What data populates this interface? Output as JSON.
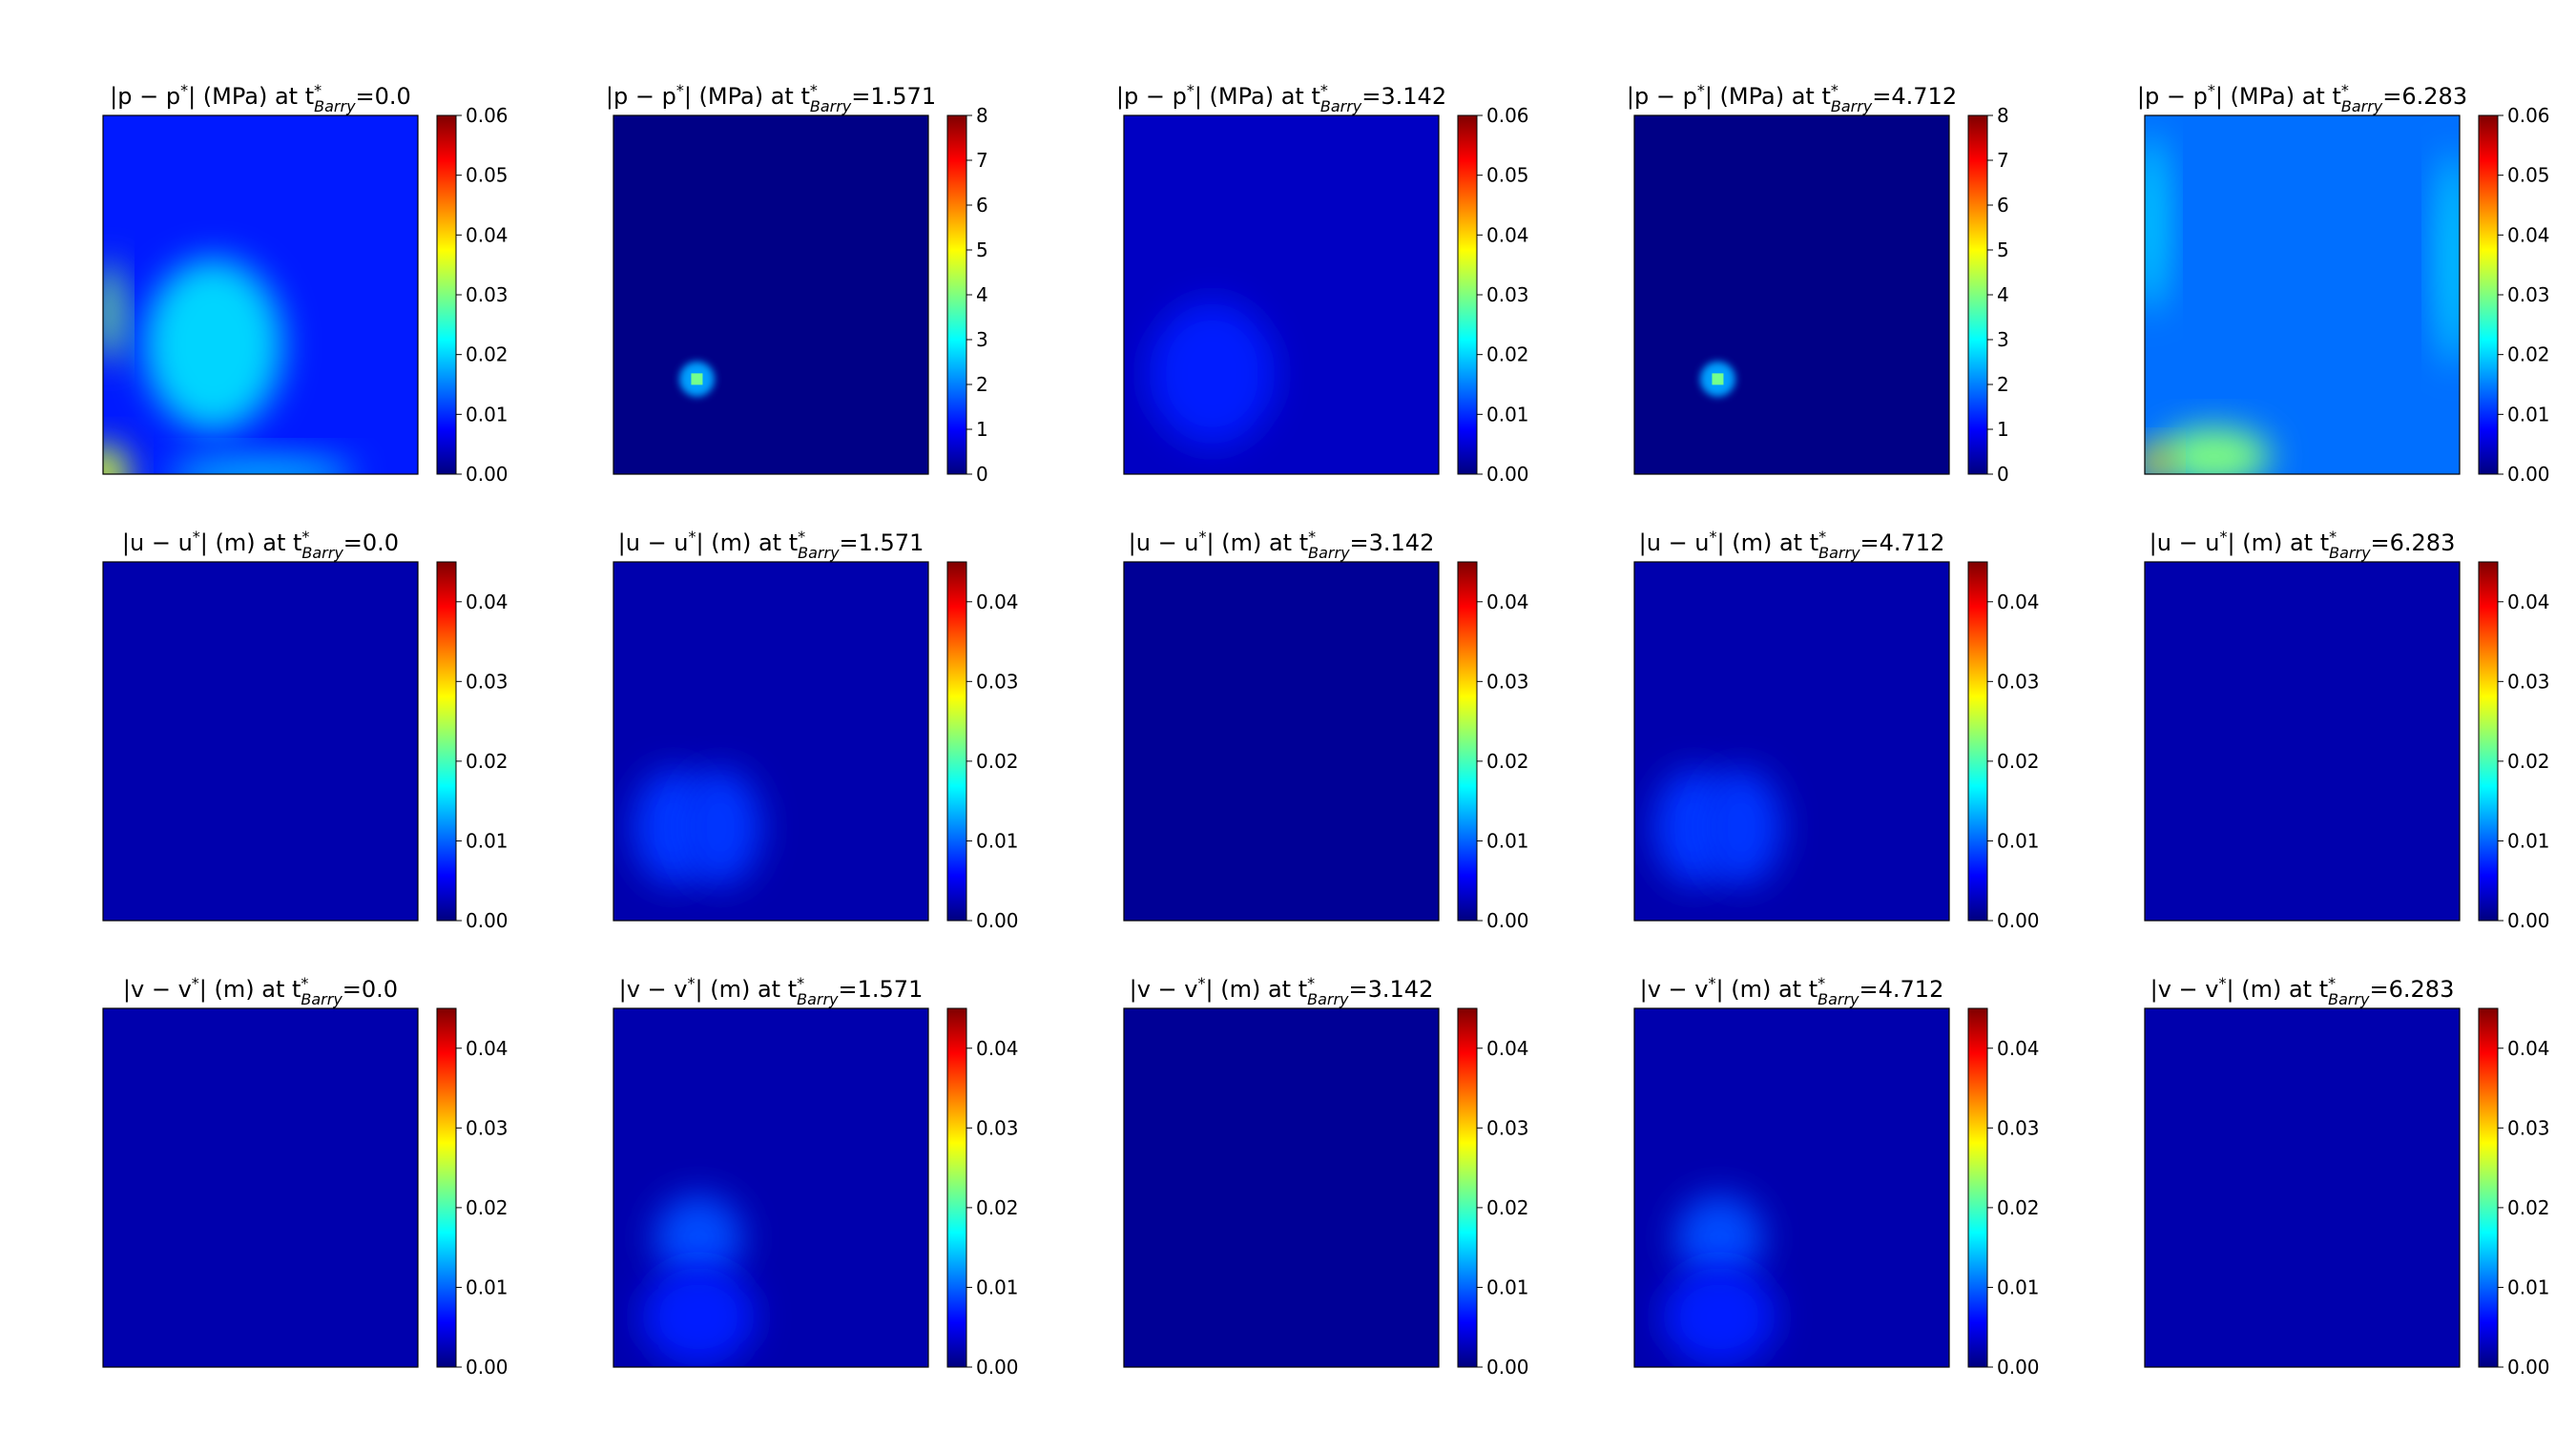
{
  "colorbar_colors": [
    "#00007f",
    "#0000ff",
    "#007fff",
    "#00ffff",
    "#7fff7f",
    "#ffff00",
    "#ff7f00",
    "#ff0000",
    "#7f0000"
  ],
  "chart_data": [
    {
      "type": "heatmap",
      "row": 0,
      "col": 0,
      "field": "p",
      "units": "MPa",
      "time": "0.0",
      "title": {
        "lhs": "|p − p",
        "rhs": "| (MPa) at t",
        "sub": "Barry",
        "value": "=0.0"
      },
      "colorbar": {
        "range": [
          0,
          0.06
        ],
        "ticks": [
          "0.00",
          "0.01",
          "0.02",
          "0.03",
          "0.04",
          "0.05",
          "0.06"
        ]
      },
      "background_level": 0.009,
      "features": [
        {
          "shape": "blob",
          "cx": 0.35,
          "cy": 0.64,
          "rx": 0.22,
          "ry": 0.24,
          "level": 0.02
        },
        {
          "shape": "blob",
          "cx": 0.02,
          "cy": 0.55,
          "rx": 0.04,
          "ry": 0.14,
          "level": 0.03
        },
        {
          "shape": "blob",
          "cx": 0.0,
          "cy": 1.0,
          "rx": 0.08,
          "ry": 0.08,
          "level": 0.035
        },
        {
          "shape": "blob",
          "cx": 0.5,
          "cy": 1.0,
          "rx": 0.3,
          "ry": 0.05,
          "level": 0.018
        }
      ]
    },
    {
      "type": "heatmap",
      "row": 0,
      "col": 1,
      "field": "p",
      "units": "MPa",
      "time": "1.571",
      "title": {
        "lhs": "|p − p",
        "rhs": "| (MPa) at t",
        "sub": "Barry",
        "value": "=1.571"
      },
      "colorbar": {
        "range": [
          0,
          8
        ],
        "ticks": [
          "0",
          "1",
          "2",
          "3",
          "4",
          "5",
          "6",
          "7",
          "8"
        ]
      },
      "background_level": 0.05,
      "features": [
        {
          "shape": "spot",
          "cx": 0.265,
          "cy": 0.735,
          "r": 0.035,
          "level": 5.0
        }
      ]
    },
    {
      "type": "heatmap",
      "row": 0,
      "col": 2,
      "field": "p",
      "units": "MPa",
      "time": "3.142",
      "title": {
        "lhs": "|p − p",
        "rhs": "| (MPa) at t",
        "sub": "Barry",
        "value": "=3.142"
      },
      "colorbar": {
        "range": [
          0,
          0.06
        ],
        "ticks": [
          "0.00",
          "0.01",
          "0.02",
          "0.03",
          "0.04",
          "0.05",
          "0.06"
        ]
      },
      "background_level": 0.004,
      "features": [
        {
          "shape": "blob",
          "cx": 0.28,
          "cy": 0.72,
          "rx": 0.2,
          "ry": 0.2,
          "level": 0.009
        }
      ]
    },
    {
      "type": "heatmap",
      "row": 0,
      "col": 3,
      "field": "p",
      "units": "MPa",
      "time": "4.712",
      "title": {
        "lhs": "|p − p",
        "rhs": "| (MPa) at t",
        "sub": "Barry",
        "value": "=4.712"
      },
      "colorbar": {
        "range": [
          0,
          8
        ],
        "ticks": [
          "0",
          "1",
          "2",
          "3",
          "4",
          "5",
          "6",
          "7",
          "8"
        ]
      },
      "background_level": 0.05,
      "features": [
        {
          "shape": "spot",
          "cx": 0.265,
          "cy": 0.735,
          "r": 0.035,
          "level": 5.0
        }
      ]
    },
    {
      "type": "heatmap",
      "row": 0,
      "col": 4,
      "field": "p",
      "units": "MPa",
      "time": "6.283",
      "title": {
        "lhs": "|p − p",
        "rhs": "| (MPa) at t",
        "sub": "Barry",
        "value": "=6.283"
      },
      "colorbar": {
        "range": [
          0,
          0.06
        ],
        "ticks": [
          "0.00",
          "0.01",
          "0.02",
          "0.03",
          "0.04",
          "0.05",
          "0.06"
        ]
      },
      "background_level": 0.014,
      "features": [
        {
          "shape": "blob",
          "cx": 0.02,
          "cy": 0.3,
          "rx": 0.05,
          "ry": 0.25,
          "level": 0.02
        },
        {
          "shape": "blob",
          "cx": 0.98,
          "cy": 0.4,
          "rx": 0.05,
          "ry": 0.3,
          "level": 0.02
        },
        {
          "shape": "blob",
          "cx": 0.22,
          "cy": 0.95,
          "rx": 0.18,
          "ry": 0.08,
          "level": 0.03
        },
        {
          "shape": "blob",
          "cx": 0.03,
          "cy": 0.97,
          "rx": 0.05,
          "ry": 0.05,
          "level": 0.04
        }
      ]
    },
    {
      "type": "heatmap",
      "row": 1,
      "col": 0,
      "field": "u",
      "units": "m",
      "time": "0.0",
      "title": {
        "lhs": "|u − u",
        "rhs": "| (m) at t",
        "sub": "Barry",
        "value": "=0.0"
      },
      "colorbar": {
        "range": [
          0,
          0.045
        ],
        "ticks": [
          "0.00",
          "0.01",
          "0.02",
          "0.03",
          "0.04"
        ]
      },
      "background_level": 0.002,
      "features": []
    },
    {
      "type": "heatmap",
      "row": 1,
      "col": 1,
      "field": "u",
      "units": "m",
      "time": "1.571",
      "title": {
        "lhs": "|u − u",
        "rhs": "| (m) at t",
        "sub": "Barry",
        "value": "=1.571"
      },
      "colorbar": {
        "range": [
          0,
          0.045
        ],
        "ticks": [
          "0.00",
          "0.01",
          "0.02",
          "0.03",
          "0.04"
        ]
      },
      "background_level": 0.002,
      "features": [
        {
          "shape": "blob",
          "cx": 0.19,
          "cy": 0.74,
          "rx": 0.13,
          "ry": 0.16,
          "level": 0.008
        },
        {
          "shape": "blob",
          "cx": 0.34,
          "cy": 0.74,
          "rx": 0.13,
          "ry": 0.16,
          "level": 0.008
        }
      ]
    },
    {
      "type": "heatmap",
      "row": 1,
      "col": 2,
      "field": "u",
      "units": "m",
      "time": "3.142",
      "title": {
        "lhs": "|u − u",
        "rhs": "| (m) at t",
        "sub": "Barry",
        "value": "=3.142"
      },
      "colorbar": {
        "range": [
          0,
          0.045
        ],
        "ticks": [
          "0.00",
          "0.01",
          "0.02",
          "0.03",
          "0.04"
        ]
      },
      "background_level": 0.001,
      "features": []
    },
    {
      "type": "heatmap",
      "row": 1,
      "col": 3,
      "field": "u",
      "units": "m",
      "time": "4.712",
      "title": {
        "lhs": "|u − u",
        "rhs": "| (m) at t",
        "sub": "Barry",
        "value": "=4.712"
      },
      "colorbar": {
        "range": [
          0,
          0.045
        ],
        "ticks": [
          "0.00",
          "0.01",
          "0.02",
          "0.03",
          "0.04"
        ]
      },
      "background_level": 0.002,
      "features": [
        {
          "shape": "blob",
          "cx": 0.19,
          "cy": 0.74,
          "rx": 0.13,
          "ry": 0.16,
          "level": 0.008
        },
        {
          "shape": "blob",
          "cx": 0.34,
          "cy": 0.74,
          "rx": 0.13,
          "ry": 0.16,
          "level": 0.008
        }
      ]
    },
    {
      "type": "heatmap",
      "row": 1,
      "col": 4,
      "field": "u",
      "units": "m",
      "time": "6.283",
      "title": {
        "lhs": "|u − u",
        "rhs": "| (m) at t",
        "sub": "Barry",
        "value": "=6.283"
      },
      "colorbar": {
        "range": [
          0,
          0.045
        ],
        "ticks": [
          "0.00",
          "0.01",
          "0.02",
          "0.03",
          "0.04"
        ]
      },
      "background_level": 0.002,
      "features": []
    },
    {
      "type": "heatmap",
      "row": 2,
      "col": 0,
      "field": "v",
      "units": "m",
      "time": "0.0",
      "title": {
        "lhs": "|v − v",
        "rhs": "| (m) at t",
        "sub": "Barry",
        "value": "=0.0"
      },
      "colorbar": {
        "range": [
          0,
          0.045
        ],
        "ticks": [
          "0.00",
          "0.01",
          "0.02",
          "0.03",
          "0.04"
        ]
      },
      "background_level": 0.002,
      "features": []
    },
    {
      "type": "heatmap",
      "row": 2,
      "col": 1,
      "field": "v",
      "units": "m",
      "time": "1.571",
      "title": {
        "lhs": "|v − v",
        "rhs": "| (m) at t",
        "sub": "Barry",
        "value": "=1.571"
      },
      "colorbar": {
        "range": [
          0,
          0.045
        ],
        "ticks": [
          "0.00",
          "0.01",
          "0.02",
          "0.03",
          "0.04"
        ]
      },
      "background_level": 0.002,
      "features": [
        {
          "shape": "blob",
          "cx": 0.27,
          "cy": 0.64,
          "rx": 0.14,
          "ry": 0.12,
          "level": 0.009
        },
        {
          "shape": "blob",
          "cx": 0.27,
          "cy": 0.86,
          "rx": 0.18,
          "ry": 0.14,
          "level": 0.007
        }
      ]
    },
    {
      "type": "heatmap",
      "row": 2,
      "col": 2,
      "field": "v",
      "units": "m",
      "time": "3.142",
      "title": {
        "lhs": "|v − v",
        "rhs": "| (m) at t",
        "sub": "Barry",
        "value": "=3.142"
      },
      "colorbar": {
        "range": [
          0,
          0.045
        ],
        "ticks": [
          "0.00",
          "0.01",
          "0.02",
          "0.03",
          "0.04"
        ]
      },
      "background_level": 0.001,
      "features": []
    },
    {
      "type": "heatmap",
      "row": 2,
      "col": 3,
      "field": "v",
      "units": "m",
      "time": "4.712",
      "title": {
        "lhs": "|v − v",
        "rhs": "| (m) at t",
        "sub": "Barry",
        "value": "=4.712"
      },
      "colorbar": {
        "range": [
          0,
          0.045
        ],
        "ticks": [
          "0.00",
          "0.01",
          "0.02",
          "0.03",
          "0.04"
        ]
      },
      "background_level": 0.002,
      "features": [
        {
          "shape": "blob",
          "cx": 0.27,
          "cy": 0.64,
          "rx": 0.14,
          "ry": 0.12,
          "level": 0.009
        },
        {
          "shape": "blob",
          "cx": 0.27,
          "cy": 0.86,
          "rx": 0.18,
          "ry": 0.14,
          "level": 0.007
        }
      ]
    },
    {
      "type": "heatmap",
      "row": 2,
      "col": 4,
      "field": "v",
      "units": "m",
      "time": "6.283",
      "title": {
        "lhs": "|v − v",
        "rhs": "| (m) at t",
        "sub": "Barry",
        "value": "=6.283"
      },
      "colorbar": {
        "range": [
          0,
          0.045
        ],
        "ticks": [
          "0.00",
          "0.01",
          "0.02",
          "0.03",
          "0.04"
        ]
      },
      "background_level": 0.002,
      "features": []
    }
  ]
}
